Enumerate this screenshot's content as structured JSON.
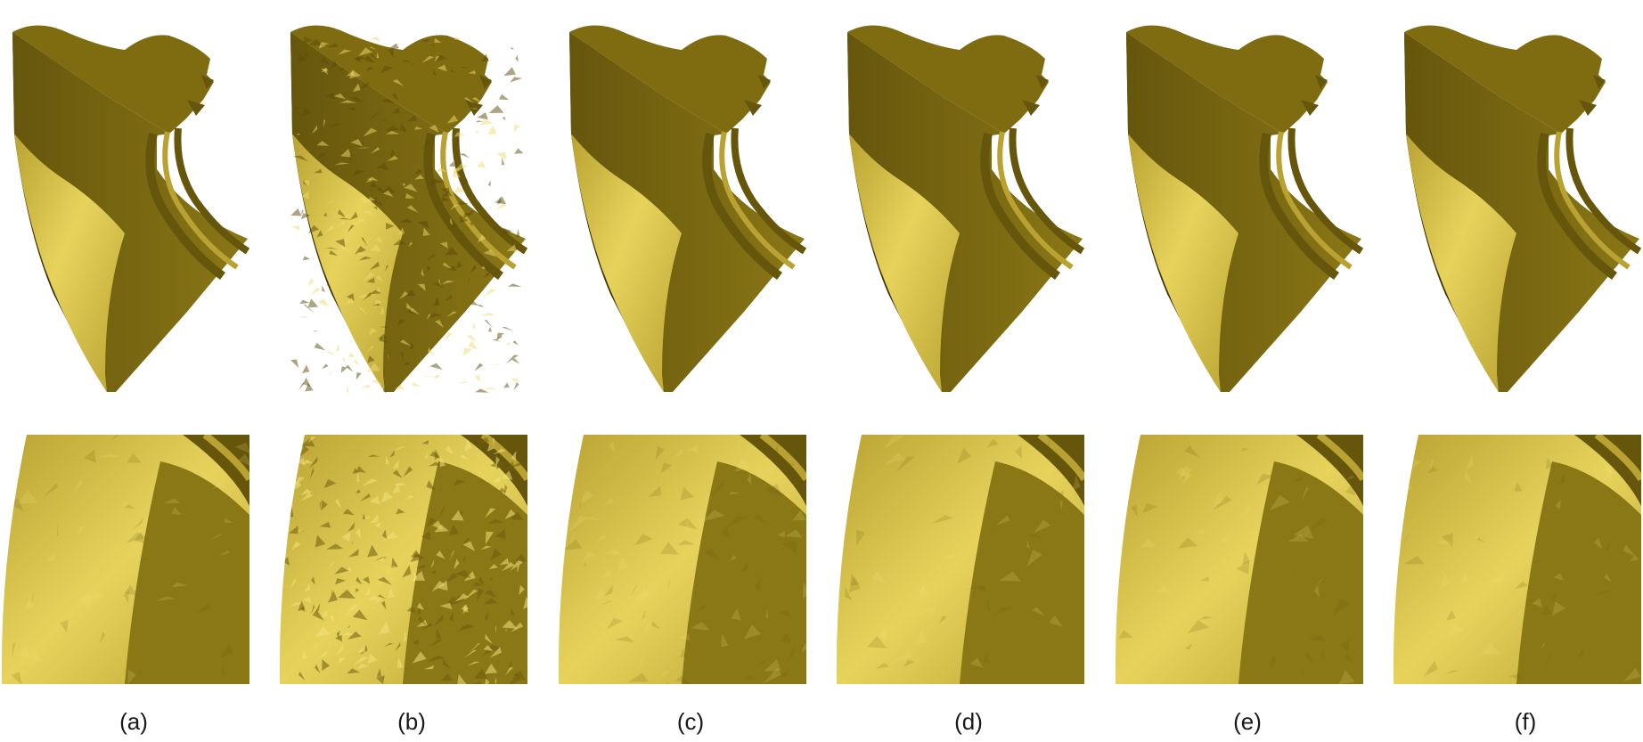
{
  "figure": {
    "panels": [
      {
        "label": "(a)",
        "variant": "ground-truth"
      },
      {
        "label": "(b)",
        "variant": "noisy"
      },
      {
        "label": "(c)",
        "variant": "denoised"
      },
      {
        "label": "(d)",
        "variant": "denoised"
      },
      {
        "label": "(e)",
        "variant": "denoised"
      },
      {
        "label": "(f)",
        "variant": "denoised"
      }
    ]
  },
  "colors": {
    "top_face": "#806c10",
    "side_face": "#8a7716",
    "light_face": "#e7d35c",
    "mid_face": "#b9a232",
    "dark_face": "#66560c",
    "edge": "#3e3306"
  }
}
